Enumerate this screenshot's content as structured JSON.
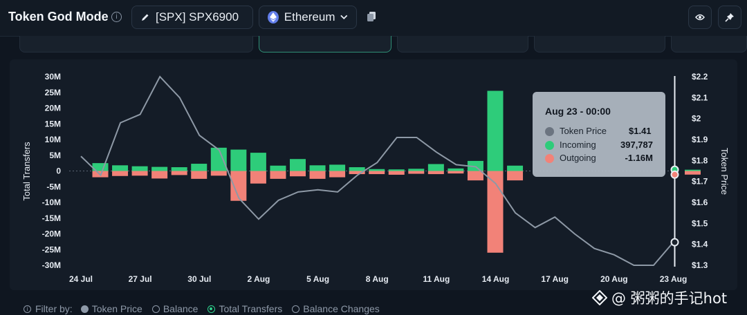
{
  "header": {
    "title": "Token God Mode",
    "token": "[SPX] SPX6900",
    "chain": "Ethereum"
  },
  "colors": {
    "incoming": "#2ecc7a",
    "outgoing": "#f28278",
    "price_line": "#8e99a6",
    "accent": "#2fd48e"
  },
  "tooltip": {
    "title": "Aug 23 - 00:00",
    "rows": [
      {
        "label": "Token Price",
        "value": "$1.41",
        "color": "#6b7480"
      },
      {
        "label": "Incoming",
        "value": "397,787",
        "color": "#2ecc7a"
      },
      {
        "label": "Outgoing",
        "value": "-1.16M",
        "color": "#f28278"
      }
    ]
  },
  "filter": {
    "label": "Filter by:",
    "options": [
      {
        "label": "Token Price",
        "state": "filled"
      },
      {
        "label": "Balance",
        "state": "off"
      },
      {
        "label": "Total Transfers",
        "state": "selected"
      },
      {
        "label": "Balance Changes",
        "state": "off"
      }
    ]
  },
  "watermark": "@ 粥粥的手记hot",
  "chart_data": {
    "type": "bar",
    "ylabel": "Total Transfers",
    "y2label": "Token Price",
    "ylim": [
      -30,
      30
    ],
    "y2lim": [
      1.3,
      2.2
    ],
    "y_ticks": [
      "30M",
      "25M",
      "20M",
      "15M",
      "10M",
      "5M",
      "0",
      "-5M",
      "-10M",
      "-15M",
      "-20M",
      "-25M",
      "-30M"
    ],
    "y2_ticks": [
      "$2.2",
      "$2.1",
      "$2",
      "$1.9",
      "$1.8",
      "$1.7",
      "$1.6",
      "$1.5",
      "$1.4",
      "$1.3"
    ],
    "x_ticks": [
      "24 Jul",
      "27 Jul",
      "30 Jul",
      "2 Aug",
      "5 Aug",
      "8 Aug",
      "11 Aug",
      "14 Aug",
      "17 Aug",
      "20 Aug",
      "23 Aug"
    ],
    "dates": [
      "Jul 24",
      "Jul 25",
      "Jul 26",
      "Jul 27",
      "Jul 28",
      "Jul 29",
      "Jul 30",
      "Jul 31",
      "Aug 1",
      "Aug 2",
      "Aug 3",
      "Aug 4",
      "Aug 5",
      "Aug 6",
      "Aug 7",
      "Aug 8",
      "Aug 9",
      "Aug 10",
      "Aug 11",
      "Aug 12",
      "Aug 13",
      "Aug 14",
      "Aug 15",
      "Aug 16",
      "Aug 17",
      "Aug 18",
      "Aug 19",
      "Aug 20",
      "Aug 21",
      "Aug 22",
      "Aug 23"
    ],
    "series": [
      {
        "name": "Incoming",
        "values": [
          2.5,
          1.8,
          1.5,
          1.3,
          1.2,
          2.3,
          7.4,
          6.8,
          5.8,
          1.7,
          3.8,
          1.8,
          2.0,
          1.2,
          0.6,
          0.5,
          0.7,
          2.2,
          0.8,
          3.2,
          25.5,
          1.7,
          null,
          null,
          null,
          null,
          null,
          null,
          null,
          null,
          0.4
        ]
      },
      {
        "name": "Outgoing",
        "values": [
          -2.0,
          -1.6,
          -1.5,
          -2.4,
          -1.3,
          -2.5,
          -1.5,
          -9.5,
          -4.0,
          -2.5,
          -1.7,
          -2.5,
          -2.0,
          -1.0,
          -1.0,
          -1.2,
          -0.9,
          -1.0,
          -0.8,
          -3.0,
          -26.0,
          -3.0,
          null,
          null,
          null,
          null,
          null,
          null,
          null,
          null,
          -1.16
        ]
      },
      {
        "name": "Token Price",
        "values": [
          1.82,
          1.73,
          1.98,
          2.02,
          2.2,
          2.1,
          1.92,
          1.85,
          1.62,
          1.52,
          1.61,
          1.65,
          1.66,
          1.65,
          1.73,
          1.79,
          1.91,
          1.91,
          1.84,
          1.78,
          1.77,
          1.69,
          1.55,
          1.48,
          1.53,
          1.45,
          1.38,
          1.35,
          1.3,
          1.3,
          1.41
        ]
      }
    ]
  }
}
